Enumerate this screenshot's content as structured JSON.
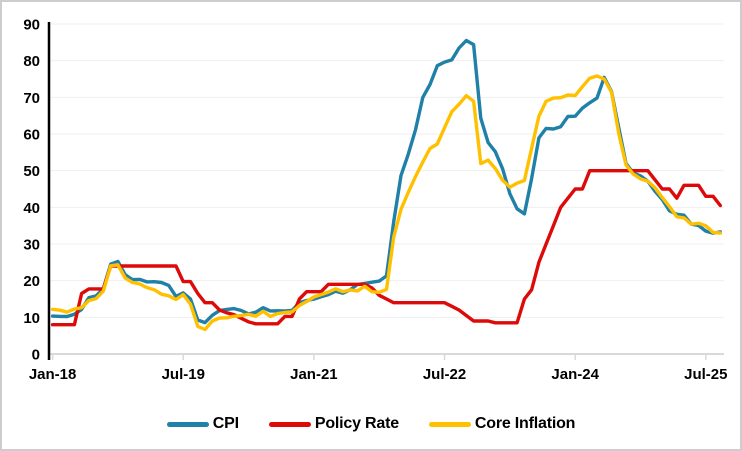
{
  "window": {
    "background": "#FFFFFF",
    "border_color": "#CDCDCD"
  },
  "chart_data": {
    "type": "line",
    "title": "",
    "legend_position": "bottom",
    "grid": "horizontal",
    "style": {
      "grid_color": "#EFEFEF",
      "x_axis_color": "#D9D9D9",
      "y_axis_color": "#000000"
    },
    "y_axis": {
      "min": 0,
      "max": 90,
      "ticks": [
        0,
        10,
        20,
        30,
        40,
        50,
        60,
        70,
        80,
        90
      ]
    },
    "x_axis": {
      "ticks": [
        {
          "index": 0,
          "label": "Jan-18"
        },
        {
          "index": 18,
          "label": "Jul-19"
        },
        {
          "index": 36,
          "label": "Jan-21"
        },
        {
          "index": 54,
          "label": "Jul-22"
        },
        {
          "index": 72,
          "label": "Jan-24"
        },
        {
          "index": 90,
          "label": "Jul-25"
        }
      ],
      "categories": [
        "Jan-18",
        "Feb-18",
        "Mar-18",
        "Apr-18",
        "May-18",
        "Jun-18",
        "Jul-18",
        "Aug-18",
        "Sep-18",
        "Oct-18",
        "Nov-18",
        "Dec-18",
        "Jan-19",
        "Feb-19",
        "Mar-19",
        "Apr-19",
        "May-19",
        "Jun-19",
        "Jul-19",
        "Aug-19",
        "Sep-19",
        "Oct-19",
        "Nov-19",
        "Dec-19",
        "Jan-20",
        "Feb-20",
        "Mar-20",
        "Apr-20",
        "May-20",
        "Jun-20",
        "Jul-20",
        "Aug-20",
        "Sep-20",
        "Oct-20",
        "Nov-20",
        "Dec-20",
        "Jan-21",
        "Feb-21",
        "Mar-21",
        "Apr-21",
        "May-21",
        "Jun-21",
        "Jul-21",
        "Aug-21",
        "Sep-21",
        "Oct-21",
        "Nov-21",
        "Dec-21",
        "Jan-22",
        "Feb-22",
        "Mar-22",
        "Apr-22",
        "May-22",
        "Jun-22",
        "Jul-22",
        "Aug-22",
        "Sep-22",
        "Oct-22",
        "Nov-22",
        "Dec-22",
        "Jan-23",
        "Feb-23",
        "Mar-23",
        "Apr-23",
        "May-23",
        "Jun-23",
        "Jul-23",
        "Aug-23",
        "Sep-23",
        "Oct-23",
        "Nov-23",
        "Dec-23",
        "Jan-24",
        "Feb-24",
        "Mar-24",
        "Apr-24",
        "May-24",
        "Jun-24",
        "Jul-24",
        "Aug-24",
        "Sep-24",
        "Oct-24",
        "Nov-24",
        "Dec-24",
        "Jan-25",
        "Feb-25",
        "Mar-25",
        "Apr-25",
        "May-25",
        "Jun-25",
        "Jul-25",
        "Aug-25",
        "Sep-25"
      ]
    },
    "series": [
      {
        "id": "cpi",
        "name": "CPI",
        "color": "#1F80A8",
        "values": [
          10.35,
          10.26,
          10.23,
          10.85,
          12.15,
          15.39,
          15.85,
          17.9,
          24.52,
          25.24,
          21.62,
          20.3,
          20.35,
          19.67,
          19.71,
          19.5,
          18.71,
          15.72,
          16.65,
          15.01,
          9.26,
          8.55,
          10.56,
          11.84,
          12.15,
          12.37,
          11.86,
          10.94,
          11.39,
          12.62,
          11.76,
          11.77,
          11.75,
          11.89,
          14.03,
          14.6,
          14.97,
          15.61,
          16.19,
          17.14,
          16.59,
          17.53,
          18.95,
          19.25,
          19.58,
          19.89,
          21.31,
          36.08,
          48.69,
          54.44,
          61.14,
          69.97,
          73.5,
          78.62,
          79.6,
          80.21,
          83.45,
          85.51,
          84.39,
          64.27,
          57.68,
          55.18,
          50.51,
          43.68,
          39.59,
          38.21,
          47.83,
          58.94,
          61.53,
          61.36,
          61.98,
          64.77,
          64.86,
          67.07,
          68.5,
          69.8,
          75.45,
          71.6,
          61.78,
          51.97,
          49.38,
          48.58,
          47.09,
          44.38,
          42.12,
          39.05,
          38.1,
          37.86,
          35.41,
          35.05,
          33.52,
          32.95,
          33.29
        ]
      },
      {
        "id": "policy-rate",
        "name": "Policy Rate",
        "color": "#DD0A0A",
        "values": [
          8,
          8,
          8,
          8,
          16.5,
          17.75,
          17.75,
          17.75,
          24,
          24,
          24,
          24,
          24,
          24,
          24,
          24,
          24,
          24,
          19.75,
          19.75,
          16.5,
          14,
          14,
          12,
          11.25,
          10.75,
          9.75,
          8.75,
          8.25,
          8.25,
          8.25,
          8.25,
          10.25,
          10.25,
          15,
          17,
          17,
          17,
          19,
          19,
          19,
          19,
          19,
          19,
          18,
          16,
          15,
          14,
          14,
          14,
          14,
          14,
          14,
          14,
          14,
          13,
          12,
          10.5,
          9,
          9,
          9,
          8.5,
          8.5,
          8.5,
          8.5,
          15,
          17.5,
          25,
          30,
          35,
          40,
          42.5,
          45,
          45,
          50,
          50,
          50,
          50,
          50,
          50,
          50,
          50,
          50,
          47.5,
          45,
          45,
          42.5,
          46,
          46,
          46,
          43,
          43,
          40.5
        ]
      },
      {
        "id": "core-inflation",
        "name": "Core Inflation",
        "color": "#FFC000",
        "values": [
          12.18,
          11.94,
          11.44,
          12.24,
          12.64,
          14.6,
          15.1,
          17.22,
          24.05,
          24.34,
          20.72,
          19.53,
          19.1,
          18.12,
          17.53,
          16.3,
          15.88,
          14.86,
          16.2,
          13.6,
          7.54,
          6.67,
          8.99,
          9.81,
          9.88,
          10.27,
          10.5,
          10.84,
          10.32,
          11.64,
          10.25,
          11.03,
          11.32,
          11.48,
          13.22,
          14.31,
          15.54,
          16.21,
          16.88,
          17.77,
          16.99,
          17.47,
          17.22,
          18.46,
          16.98,
          16.82,
          17.62,
          31.88,
          39.45,
          44.05,
          48.39,
          52.37,
          56.04,
          57.26,
          61.69,
          66.09,
          68.09,
          70.45,
          68.95,
          51.93,
          52.89,
          50.58,
          47.36,
          45.48,
          46.62,
          47.33,
          56.09,
          64.86,
          68.93,
          69.8,
          69.89,
          70.64,
          70.48,
          72.89,
          75.21,
          75.81,
          74.98,
          71.41,
          60.23,
          51.56,
          49.1,
          47.75,
          47.13,
          45.34,
          42.65,
          40.21,
          37.42,
          37.12,
          35.4,
          35.64,
          34.99,
          33.14,
          33.01
        ]
      }
    ]
  }
}
